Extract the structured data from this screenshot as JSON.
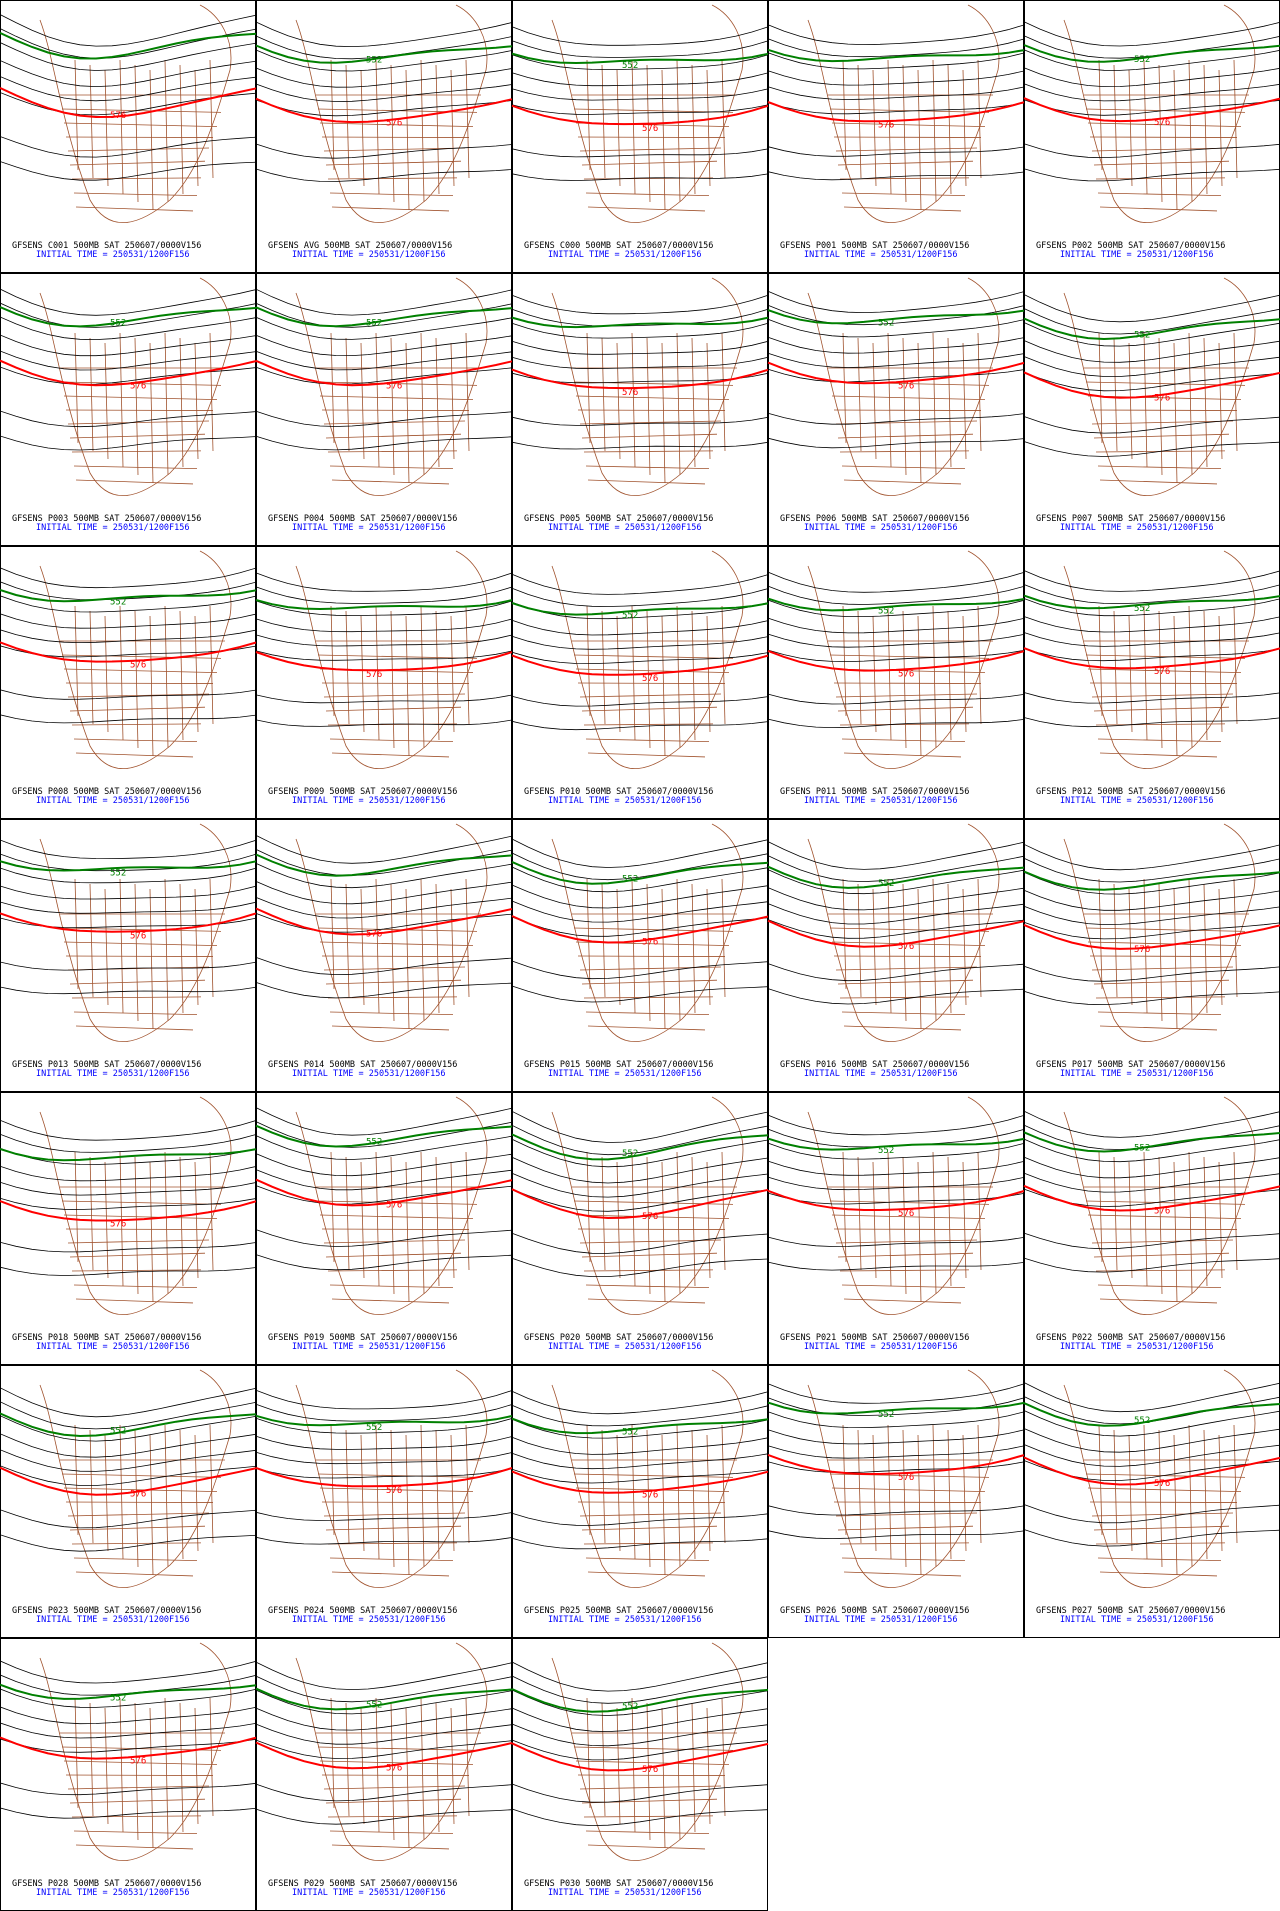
{
  "panels": [
    {
      "title": "GFSENS C001 500MB SAT 250607/0000V156",
      "init": "INITIAL TIME = 250531/1200F156",
      "labels": [
        "576"
      ]
    },
    {
      "title": "GFSENS AVG 500MB SAT 250607/0000V156",
      "init": "INITIAL TIME = 250531/1200F156",
      "labels": [
        "552",
        "576"
      ]
    },
    {
      "title": "GFSENS C000 500MB SAT 250607/0000V156",
      "init": "INITIAL TIME = 250531/1200F156",
      "labels": [
        "552",
        "576"
      ]
    },
    {
      "title": "GFSENS P001 500MB SAT 250607/0000V156",
      "init": "INITIAL TIME = 250531/1200F156",
      "labels": [
        "576"
      ]
    },
    {
      "title": "GFSENS P002 500MB SAT 250607/0000V156",
      "init": "INITIAL TIME = 250531/1200F156",
      "labels": [
        "552",
        "576"
      ]
    },
    {
      "title": "GFSENS P003 500MB SAT 250607/0000V156",
      "init": "INITIAL TIME = 250531/1200F156",
      "labels": [
        "552",
        "576"
      ]
    },
    {
      "title": "GFSENS P004 500MB SAT 250607/0000V156",
      "init": "INITIAL TIME = 250531/1200F156",
      "labels": [
        "552",
        "576"
      ]
    },
    {
      "title": "GFSENS P005 500MB SAT 250607/0000V156",
      "init": "INITIAL TIME = 250531/1200F156",
      "labels": [
        "576"
      ]
    },
    {
      "title": "GFSENS P006 500MB SAT 250607/0000V156",
      "init": "INITIAL TIME = 250531/1200F156",
      "labels": [
        "552",
        "576"
      ]
    },
    {
      "title": "GFSENS P007 500MB SAT 250607/0000V156",
      "init": "INITIAL TIME = 250531/1200F156",
      "labels": [
        "552",
        "576"
      ]
    },
    {
      "title": "GFSENS P008 500MB SAT 250607/0000V156",
      "init": "INITIAL TIME = 250531/1200F156",
      "labels": [
        "552",
        "576"
      ]
    },
    {
      "title": "GFSENS P009 500MB SAT 250607/0000V156",
      "init": "INITIAL TIME = 250531/1200F156",
      "labels": [
        "576"
      ]
    },
    {
      "title": "GFSENS P010 500MB SAT 250607/0000V156",
      "init": "INITIAL TIME = 250531/1200F156",
      "labels": [
        "552",
        "576"
      ]
    },
    {
      "title": "GFSENS P011 500MB SAT 250607/0000V156",
      "init": "INITIAL TIME = 250531/1200F156",
      "labels": [
        "552",
        "576"
      ]
    },
    {
      "title": "GFSENS P012 500MB SAT 250607/0000V156",
      "init": "INITIAL TIME = 250531/1200F156",
      "labels": [
        "552",
        "576"
      ]
    },
    {
      "title": "GFSENS P013 500MB SAT 250607/0000V156",
      "init": "INITIAL TIME = 250531/1200F156",
      "labels": [
        "552",
        "576"
      ]
    },
    {
      "title": "GFSENS P014 500MB SAT 250607/0000V156",
      "init": "INITIAL TIME = 250531/1200F156",
      "labels": [
        "576"
      ]
    },
    {
      "title": "GFSENS P015 500MB SAT 250607/0000V156",
      "init": "INITIAL TIME = 250531/1200F156",
      "labels": [
        "552",
        "576"
      ]
    },
    {
      "title": "GFSENS P016 500MB SAT 250607/0000V156",
      "init": "INITIAL TIME = 250531/1200F156",
      "labels": [
        "552",
        "576"
      ]
    },
    {
      "title": "GFSENS P017 500MB SAT 250607/0000V156",
      "init": "INITIAL TIME = 250531/1200F156",
      "labels": [
        "576"
      ]
    },
    {
      "title": "GFSENS P018 500MB SAT 250607/0000V156",
      "init": "INITIAL TIME = 250531/1200F156",
      "labels": [
        "576"
      ]
    },
    {
      "title": "GFSENS P019 500MB SAT 250607/0000V156",
      "init": "INITIAL TIME = 250531/1200F156",
      "labels": [
        "552",
        "576"
      ]
    },
    {
      "title": "GFSENS P020 500MB SAT 250607/0000V156",
      "init": "INITIAL TIME = 250531/1200F156",
      "labels": [
        "552",
        "576"
      ]
    },
    {
      "title": "GFSENS P021 500MB SAT 250607/0000V156",
      "init": "INITIAL TIME = 250531/1200F156",
      "labels": [
        "552",
        "576"
      ]
    },
    {
      "title": "GFSENS P022 500MB SAT 250607/0000V156",
      "init": "INITIAL TIME = 250531/1200F156",
      "labels": [
        "552",
        "576"
      ]
    },
    {
      "title": "GFSENS P023 500MB SAT 250607/0000V156",
      "init": "INITIAL TIME = 250531/1200F156",
      "labels": [
        "552",
        "576"
      ]
    },
    {
      "title": "GFSENS P024 500MB SAT 250607/0000V156",
      "init": "INITIAL TIME = 250531/1200F156",
      "labels": [
        "552",
        "576"
      ]
    },
    {
      "title": "GFSENS P025 500MB SAT 250607/0000V156",
      "init": "INITIAL TIME = 250531/1200F156",
      "labels": [
        "552",
        "576"
      ]
    },
    {
      "title": "GFSENS P026 500MB SAT 250607/0000V156",
      "init": "INITIAL TIME = 250531/1200F156",
      "labels": [
        "552",
        "576"
      ]
    },
    {
      "title": "GFSENS P027 500MB SAT 250607/0000V156",
      "init": "INITIAL TIME = 250531/1200F156",
      "labels": [
        "552",
        "576"
      ]
    },
    {
      "title": "GFSENS P028 500MB SAT 250607/0000V156",
      "init": "INITIAL TIME = 250531/1200F156",
      "labels": [
        "552",
        "576"
      ]
    },
    {
      "title": "GFSENS P029 500MB SAT 250607/0000V156",
      "init": "INITIAL TIME = 250531/1200F156",
      "labels": [
        "552",
        "576"
      ]
    },
    {
      "title": "GFSENS P030 500MB SAT 250607/0000V156",
      "init": "INITIAL TIME = 250531/1200F156",
      "labels": [
        "552",
        "576"
      ]
    }
  ]
}
